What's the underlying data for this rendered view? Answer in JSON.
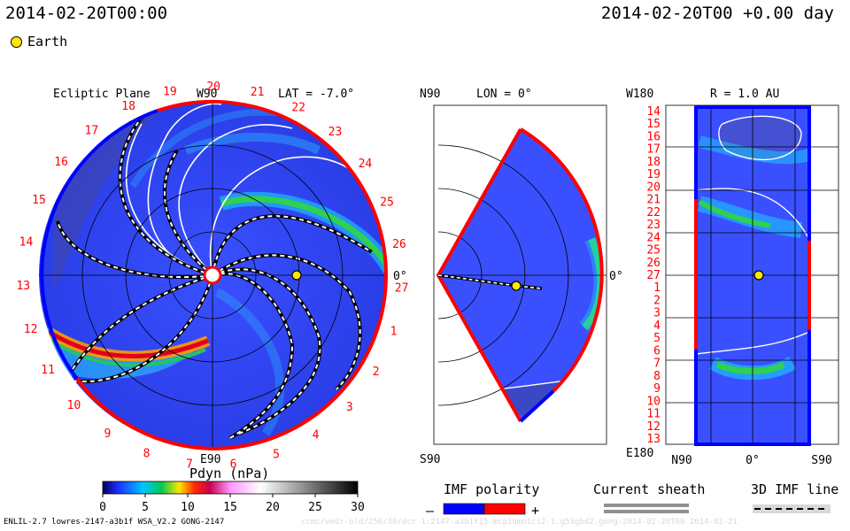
{
  "header": {
    "datetime_left": "2014-02-20T00:00",
    "datetime_right": "2014-02-20T00 +0.00 day",
    "legend_earth": "Earth",
    "earth_color": "#ffe800"
  },
  "panels": {
    "ecliptic": {
      "title": "Ecliptic Plane",
      "top_label": "W90",
      "lat_label": "LAT = -7.0°",
      "right_label": "0°",
      "bottom_label": "E90",
      "sector_numbers": [
        "19",
        "20",
        "21",
        "22",
        "23",
        "24",
        "25",
        "26",
        "27",
        "1",
        "2",
        "3",
        "4",
        "5",
        "6",
        "7",
        "8",
        "9",
        "10",
        "11",
        "12",
        "13",
        "14",
        "15",
        "16",
        "17",
        "18"
      ]
    },
    "meridional": {
      "top_left_label": "N90",
      "lon_label": "LON = 0°",
      "right_label": "0°",
      "bottom_left_label": "S90"
    },
    "sphere": {
      "top_left_label": "W180",
      "r_label": "R = 1.0 AU",
      "bottom_left_label": "E180",
      "x_ticks": [
        "N90",
        "0°",
        "S90"
      ],
      "y_labels": [
        "14",
        "15",
        "16",
        "17",
        "18",
        "19",
        "20",
        "21",
        "22",
        "23",
        "24",
        "25",
        "26",
        "27",
        "1",
        "2",
        "3",
        "4",
        "5",
        "6",
        "7",
        "8",
        "9",
        "10",
        "11",
        "12",
        "13"
      ]
    }
  },
  "colorbar": {
    "title": "Pdyn (nPa)",
    "ticks": [
      "0",
      "5",
      "10",
      "15",
      "20",
      "25",
      "30"
    ],
    "range": [
      0,
      30
    ]
  },
  "legends": {
    "imf_polarity": "IMF polarity",
    "imf_minus": "–",
    "imf_plus": "+",
    "imf_negative_color": "#0000ff",
    "imf_positive_color": "#ff0000",
    "current_sheath": "Current sheath",
    "imf_line_3d": "3D IMF line"
  },
  "footer": {
    "run_info": "ENLIL-2.7 lowres-2147-a3b1f WSA_V2.2 GONG-2147",
    "faint": "ccmc/vedr-old/256/30/dcr 1:2147-a3b1f15-mcp1umn1ci2-1.g53gbd2.gong-2014-02-20T00   2014-02-21"
  },
  "chart_data": [
    {
      "type": "heatmap",
      "title": "Ecliptic Plane",
      "variable": "Pdyn (nPa)",
      "latitude_deg": -7.0,
      "projection": "polar",
      "sectors": [
        "19",
        "20",
        "21",
        "22",
        "23",
        "24",
        "25",
        "26",
        "27",
        "1",
        "2",
        "3",
        "4",
        "5",
        "6",
        "7",
        "8",
        "9",
        "10",
        "11",
        "12",
        "13",
        "14",
        "15",
        "16",
        "17",
        "18"
      ],
      "earth_marker": true,
      "color_range": [
        0,
        30
      ]
    },
    {
      "type": "heatmap",
      "title": "LON = 0°",
      "variable": "Pdyn (nPa)",
      "projection": "meridional",
      "latitude_range": [
        "N90",
        "S90"
      ],
      "earth_marker": true,
      "color_range": [
        0,
        30
      ]
    },
    {
      "type": "heatmap",
      "title": "R = 1.0 AU",
      "variable": "Pdyn (nPa)",
      "projection": "lon-lat",
      "x_labels": [
        "N90",
        "0°",
        "S90"
      ],
      "y_range": [
        "W180",
        "E180"
      ],
      "y_labels": [
        "14",
        "15",
        "16",
        "17",
        "18",
        "19",
        "20",
        "21",
        "22",
        "23",
        "24",
        "25",
        "26",
        "27",
        "1",
        "2",
        "3",
        "4",
        "5",
        "6",
        "7",
        "8",
        "9",
        "10",
        "11",
        "12",
        "13"
      ],
      "earth_marker": true,
      "color_range": [
        0,
        30
      ]
    }
  ]
}
